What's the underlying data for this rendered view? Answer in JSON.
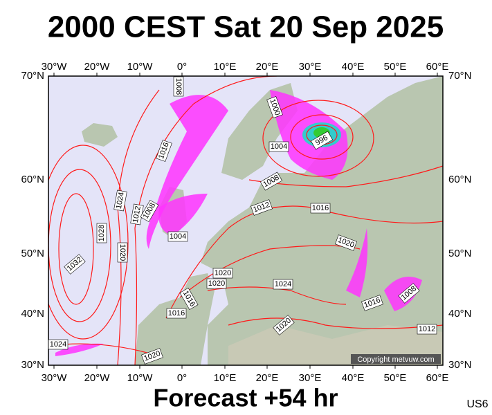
{
  "header": {
    "title": "2000 CEST Sat 20 Sep 2025"
  },
  "map": {
    "longitudes": [
      "30°W",
      "20°W",
      "10°W",
      "0°",
      "10°E",
      "20°E",
      "30°E",
      "40°E",
      "50°E",
      "60°E"
    ],
    "latitudes": [
      "70°N",
      "60°N",
      "50°N",
      "40°N",
      "30°N"
    ],
    "isobar_labels": [
      "1008",
      "1000",
      "996",
      "1004",
      "1016",
      "1008",
      "1024",
      "1012",
      "1016",
      "1012",
      "1008",
      "1028",
      "1004",
      "1020",
      "1020",
      "1032",
      "1020",
      "1020",
      "1024",
      "1016",
      "1016",
      "1008",
      "1016",
      "1020",
      "1012",
      "1024",
      "1020"
    ],
    "copyright": "Copyright metvuw.com"
  },
  "footer": {
    "forecast": "Forecast +54 hr",
    "code": "US6"
  }
}
